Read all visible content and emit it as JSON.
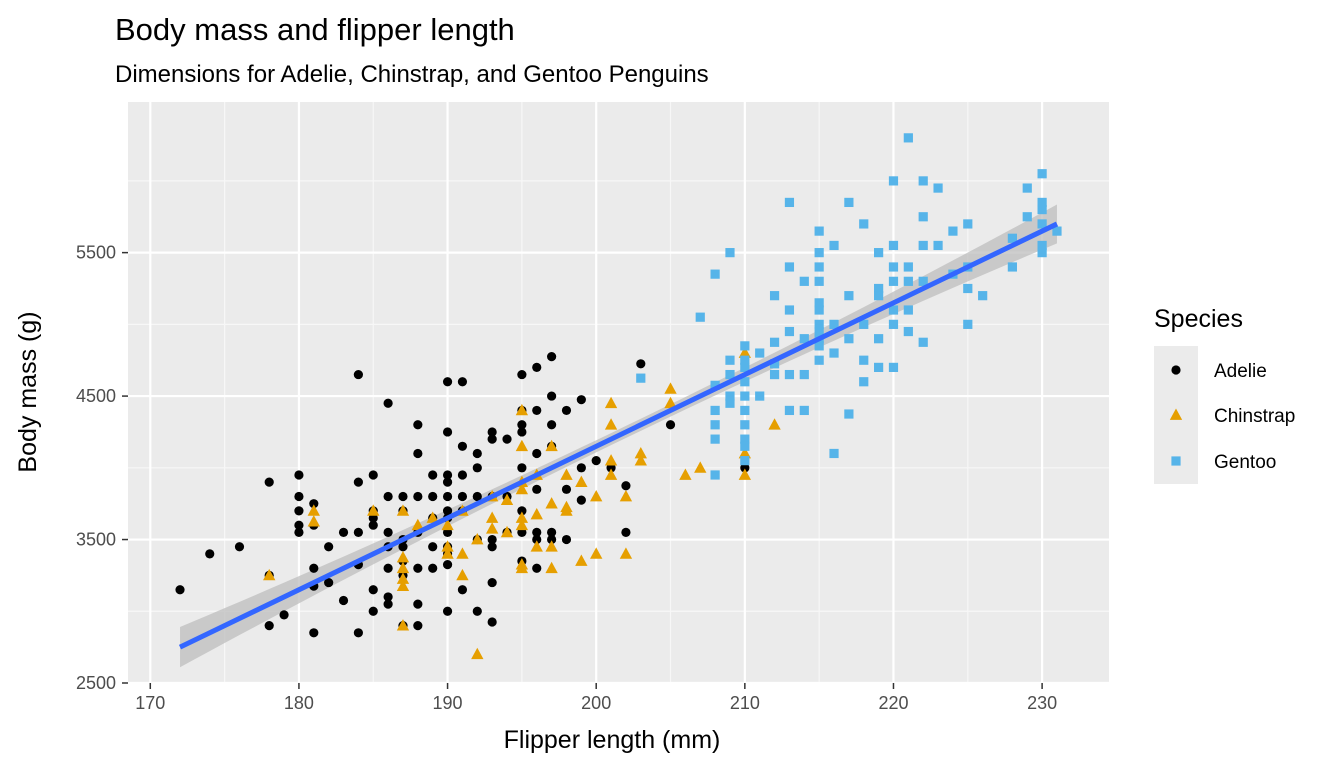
{
  "chart_data": {
    "type": "scatter",
    "title": "Body mass and flipper length",
    "subtitle": "Dimensions for Adelie, Chinstrap, and Gentoo Penguins",
    "xlabel": "Flipper length (mm)",
    "ylabel": "Body mass (g)",
    "xlim": [
      168.5,
      234.5
    ],
    "ylim": [
      2500,
      6550
    ],
    "x_ticks": [
      170,
      180,
      190,
      200,
      210,
      220,
      230
    ],
    "y_ticks": [
      2500,
      3500,
      4500,
      5500
    ],
    "x_tick_labels": [
      "170",
      "180",
      "190",
      "200",
      "210",
      "220",
      "230"
    ],
    "y_tick_labels": [
      "2500",
      "3500",
      "4500",
      "5500"
    ],
    "grid": true,
    "legend": {
      "title": "Species",
      "position": "right"
    },
    "trend_line": {
      "method": "lm",
      "x": [
        172,
        231
      ],
      "y": [
        2750,
        5700
      ],
      "color": "#3366ff",
      "band_color": "#bdbdbd"
    },
    "series": [
      {
        "name": "Adelie",
        "shape": "circle",
        "color": "#000000",
        "points": [
          [
            172,
            3150
          ],
          [
            174,
            3400
          ],
          [
            176,
            3450
          ],
          [
            178,
            3900
          ],
          [
            178,
            2900
          ],
          [
            178,
            3250
          ],
          [
            179,
            2975
          ],
          [
            180,
            3950
          ],
          [
            180,
            3800
          ],
          [
            180,
            3700
          ],
          [
            180,
            3550
          ],
          [
            180,
            3600
          ],
          [
            181,
            3750
          ],
          [
            181,
            3600
          ],
          [
            181,
            3300
          ],
          [
            181,
            3175
          ],
          [
            181,
            2850
          ],
          [
            182,
            3450
          ],
          [
            182,
            3200
          ],
          [
            183,
            3550
          ],
          [
            183,
            3075
          ],
          [
            184,
            4650
          ],
          [
            184,
            3900
          ],
          [
            184,
            3550
          ],
          [
            184,
            3325
          ],
          [
            184,
            2850
          ],
          [
            185,
            3950
          ],
          [
            185,
            3700
          ],
          [
            185,
            3600
          ],
          [
            185,
            3650
          ],
          [
            185,
            3150
          ],
          [
            185,
            3000
          ],
          [
            186,
            4450
          ],
          [
            186,
            3800
          ],
          [
            186,
            3550
          ],
          [
            186,
            3450
          ],
          [
            186,
            3300
          ],
          [
            186,
            3100
          ],
          [
            186,
            3050
          ],
          [
            187,
            3800
          ],
          [
            187,
            3700
          ],
          [
            187,
            3500
          ],
          [
            187,
            3450
          ],
          [
            187,
            3350
          ],
          [
            187,
            3250
          ],
          [
            187,
            2900
          ],
          [
            188,
            4300
          ],
          [
            188,
            4100
          ],
          [
            188,
            3800
          ],
          [
            188,
            3550
          ],
          [
            188,
            3300
          ],
          [
            188,
            3050
          ],
          [
            188,
            2900
          ],
          [
            189,
            3950
          ],
          [
            189,
            3800
          ],
          [
            189,
            3650
          ],
          [
            189,
            3450
          ],
          [
            189,
            3300
          ],
          [
            190,
            4600
          ],
          [
            190,
            4250
          ],
          [
            190,
            3950
          ],
          [
            190,
            3900
          ],
          [
            190,
            3800
          ],
          [
            190,
            3700
          ],
          [
            190,
            3650
          ],
          [
            190,
            3550
          ],
          [
            190,
            3450
          ],
          [
            190,
            3400
          ],
          [
            190,
            3325
          ],
          [
            190,
            3000
          ],
          [
            191,
            4600
          ],
          [
            191,
            4150
          ],
          [
            191,
            3950
          ],
          [
            191,
            3800
          ],
          [
            191,
            3700
          ],
          [
            191,
            3150
          ],
          [
            192,
            4100
          ],
          [
            192,
            4000
          ],
          [
            192,
            3800
          ],
          [
            192,
            3500
          ],
          [
            192,
            3000
          ],
          [
            193,
            4250
          ],
          [
            193,
            4200
          ],
          [
            193,
            3800
          ],
          [
            193,
            3500
          ],
          [
            193,
            3450
          ],
          [
            193,
            3200
          ],
          [
            193,
            2925
          ],
          [
            194,
            4200
          ],
          [
            194,
            3800
          ],
          [
            194,
            3550
          ],
          [
            195,
            4650
          ],
          [
            195,
            4400
          ],
          [
            195,
            4300
          ],
          [
            195,
            4250
          ],
          [
            195,
            4000
          ],
          [
            195,
            3700
          ],
          [
            195,
            3550
          ],
          [
            195,
            3350
          ],
          [
            196,
            4700
          ],
          [
            196,
            4400
          ],
          [
            196,
            4100
          ],
          [
            196,
            3850
          ],
          [
            196,
            3550
          ],
          [
            196,
            3500
          ],
          [
            196,
            3300
          ],
          [
            197,
            4775
          ],
          [
            197,
            4500
          ],
          [
            197,
            4300
          ],
          [
            197,
            4150
          ],
          [
            197,
            3550
          ],
          [
            197,
            3500
          ],
          [
            198,
            4400
          ],
          [
            198,
            3850
          ],
          [
            198,
            3500
          ],
          [
            199,
            4475
          ],
          [
            199,
            4000
          ],
          [
            199,
            3775
          ],
          [
            200,
            4050
          ],
          [
            201,
            4000
          ],
          [
            202,
            3875
          ],
          [
            202,
            3550
          ],
          [
            203,
            4725
          ],
          [
            205,
            4300
          ],
          [
            210,
            4000
          ]
        ]
      },
      {
        "name": "Chinstrap",
        "shape": "triangle",
        "color": "#e69f00",
        "points": [
          [
            178,
            3250
          ],
          [
            181,
            3700
          ],
          [
            181,
            3625
          ],
          [
            185,
            3700
          ],
          [
            187,
            3700
          ],
          [
            187,
            3375
          ],
          [
            187,
            3300
          ],
          [
            187,
            3225
          ],
          [
            187,
            3175
          ],
          [
            187,
            2900
          ],
          [
            188,
            3600
          ],
          [
            189,
            3650
          ],
          [
            190,
            3600
          ],
          [
            190,
            3450
          ],
          [
            190,
            3400
          ],
          [
            191,
            3400
          ],
          [
            191,
            3250
          ],
          [
            191,
            3700
          ],
          [
            192,
            3500
          ],
          [
            192,
            2700
          ],
          [
            193,
            3800
          ],
          [
            193,
            3650
          ],
          [
            193,
            3575
          ],
          [
            194,
            3775
          ],
          [
            194,
            3550
          ],
          [
            195,
            4400
          ],
          [
            195,
            4150
          ],
          [
            195,
            3900
          ],
          [
            195,
            3850
          ],
          [
            195,
            3650
          ],
          [
            195,
            3600
          ],
          [
            195,
            3325
          ],
          [
            195,
            3300
          ],
          [
            196,
            3950
          ],
          [
            196,
            3675
          ],
          [
            196,
            3450
          ],
          [
            197,
            4150
          ],
          [
            197,
            3750
          ],
          [
            197,
            3450
          ],
          [
            197,
            3300
          ],
          [
            198,
            3950
          ],
          [
            198,
            3725
          ],
          [
            198,
            3700
          ],
          [
            199,
            3900
          ],
          [
            199,
            3350
          ],
          [
            200,
            3800
          ],
          [
            200,
            3400
          ],
          [
            201,
            4450
          ],
          [
            201,
            4300
          ],
          [
            201,
            4050
          ],
          [
            201,
            3950
          ],
          [
            202,
            3800
          ],
          [
            202,
            3400
          ],
          [
            203,
            4100
          ],
          [
            203,
            4050
          ],
          [
            205,
            4550
          ],
          [
            205,
            4450
          ],
          [
            206,
            3950
          ],
          [
            207,
            4000
          ],
          [
            210,
            4800
          ],
          [
            210,
            4100
          ],
          [
            210,
            3950
          ],
          [
            212,
            4300
          ]
        ]
      },
      {
        "name": "Gentoo",
        "shape": "square",
        "color": "#56b4e9",
        "points": [
          [
            203,
            4625
          ],
          [
            207,
            5050
          ],
          [
            208,
            5350
          ],
          [
            208,
            4575
          ],
          [
            208,
            4400
          ],
          [
            208,
            4300
          ],
          [
            208,
            4200
          ],
          [
            208,
            3950
          ],
          [
            209,
            5500
          ],
          [
            209,
            4750
          ],
          [
            209,
            4650
          ],
          [
            209,
            4500
          ],
          [
            209,
            4450
          ],
          [
            210,
            4850
          ],
          [
            210,
            4750
          ],
          [
            210,
            4700
          ],
          [
            210,
            4600
          ],
          [
            210,
            4500
          ],
          [
            210,
            4400
          ],
          [
            210,
            4300
          ],
          [
            210,
            4200
          ],
          [
            210,
            4150
          ],
          [
            210,
            4050
          ],
          [
            211,
            4800
          ],
          [
            211,
            4500
          ],
          [
            212,
            5200
          ],
          [
            212,
            4875
          ],
          [
            212,
            4725
          ],
          [
            212,
            4650
          ],
          [
            213,
            5850
          ],
          [
            213,
            5400
          ],
          [
            213,
            5100
          ],
          [
            213,
            4950
          ],
          [
            213,
            4650
          ],
          [
            213,
            4400
          ],
          [
            214,
            5300
          ],
          [
            214,
            4900
          ],
          [
            214,
            4650
          ],
          [
            214,
            4400
          ],
          [
            215,
            5650
          ],
          [
            215,
            5500
          ],
          [
            215,
            5400
          ],
          [
            215,
            5300
          ],
          [
            215,
            5150
          ],
          [
            215,
            5100
          ],
          [
            215,
            5000
          ],
          [
            215,
            4950
          ],
          [
            215,
            4900
          ],
          [
            215,
            4850
          ],
          [
            215,
            4750
          ],
          [
            216,
            5550
          ],
          [
            216,
            5000
          ],
          [
            216,
            4800
          ],
          [
            216,
            4100
          ],
          [
            217,
            5850
          ],
          [
            217,
            5200
          ],
          [
            217,
            4900
          ],
          [
            217,
            4375
          ],
          [
            218,
            5700
          ],
          [
            218,
            5000
          ],
          [
            218,
            4750
          ],
          [
            218,
            4600
          ],
          [
            219,
            5500
          ],
          [
            219,
            5250
          ],
          [
            219,
            5200
          ],
          [
            219,
            4900
          ],
          [
            219,
            4700
          ],
          [
            220,
            6000
          ],
          [
            220,
            5550
          ],
          [
            220,
            5400
          ],
          [
            220,
            5300
          ],
          [
            220,
            5100
          ],
          [
            220,
            5000
          ],
          [
            220,
            4700
          ],
          [
            221,
            6300
          ],
          [
            221,
            5400
          ],
          [
            221,
            5300
          ],
          [
            221,
            5100
          ],
          [
            221,
            4950
          ],
          [
            222,
            6000
          ],
          [
            222,
            5750
          ],
          [
            222,
            5550
          ],
          [
            222,
            5300
          ],
          [
            222,
            4875
          ],
          [
            223,
            5950
          ],
          [
            223,
            5550
          ],
          [
            224,
            5650
          ],
          [
            224,
            5350
          ],
          [
            225,
            5700
          ],
          [
            225,
            5400
          ],
          [
            225,
            5250
          ],
          [
            225,
            5000
          ],
          [
            226,
            5200
          ],
          [
            228,
            5600
          ],
          [
            228,
            5400
          ],
          [
            229,
            5950
          ],
          [
            229,
            5750
          ],
          [
            230,
            6050
          ],
          [
            230,
            5850
          ],
          [
            230,
            5800
          ],
          [
            230,
            5700
          ],
          [
            230,
            5550
          ],
          [
            230,
            5500
          ],
          [
            231,
            5650
          ]
        ]
      }
    ]
  }
}
